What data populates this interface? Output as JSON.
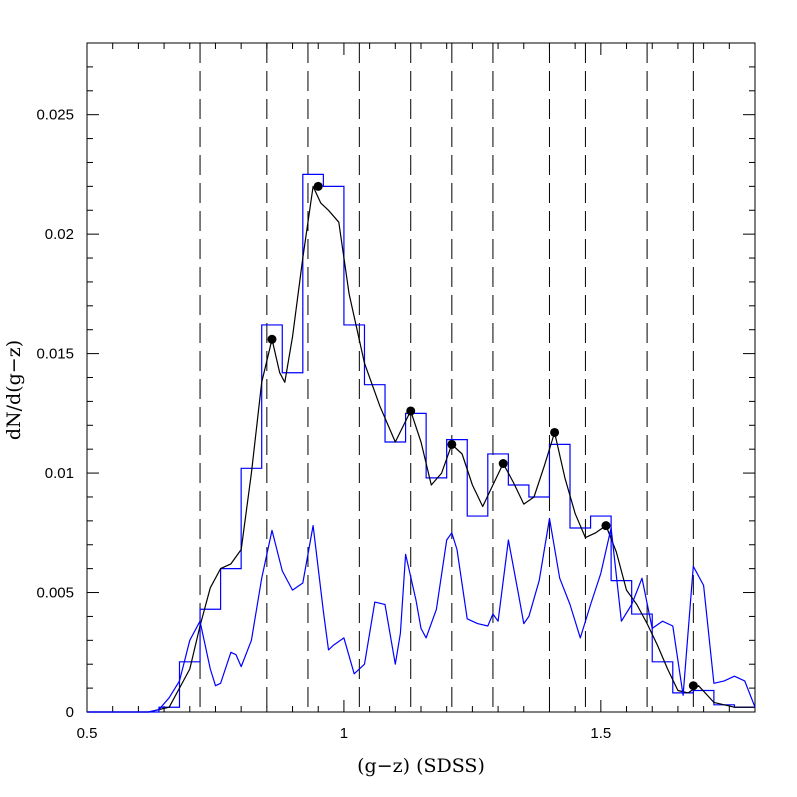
{
  "chart_data": {
    "type": "line",
    "title": "",
    "xlabel": "(g−z)  (SDSS)",
    "ylabel": "dN/d(g−z)",
    "xlim": [
      0.5,
      1.8
    ],
    "ylim": [
      0,
      0.028
    ],
    "xticks": [
      0.5,
      1,
      1.5
    ],
    "xtick_labels": [
      "0.5",
      "1",
      "1.5"
    ],
    "yticks": [
      0,
      0.005,
      0.01,
      0.015,
      0.02,
      0.025
    ],
    "ytick_labels": [
      "0",
      "0.005",
      "0.01",
      "0.015",
      "0.02",
      "0.025"
    ],
    "grid": false,
    "colors": {
      "histogram": "#0000ff",
      "residual": "#0000ff",
      "smooth": "#000000",
      "peaks": "#000000",
      "guides": "#000000"
    },
    "vertical_dashed_lines": [
      0.72,
      0.85,
      0.93,
      1.03,
      1.13,
      1.21,
      1.29,
      1.4,
      1.47,
      1.59,
      1.68
    ],
    "histogram": {
      "edges": [
        0.5,
        0.64,
        0.68,
        0.72,
        0.76,
        0.8,
        0.84,
        0.88,
        0.92,
        0.96,
        1.0,
        1.04,
        1.08,
        1.12,
        1.16,
        1.2,
        1.24,
        1.28,
        1.32,
        1.36,
        1.4,
        1.44,
        1.48,
        1.52,
        1.56,
        1.6,
        1.64,
        1.68,
        1.72,
        1.76,
        1.8
      ],
      "values": [
        0,
        0.0002,
        0.0021,
        0.0043,
        0.006,
        0.0102,
        0.0162,
        0.0142,
        0.0225,
        0.022,
        0.0162,
        0.0137,
        0.0113,
        0.0125,
        0.0098,
        0.0114,
        0.0082,
        0.0108,
        0.0095,
        0.009,
        0.0112,
        0.0077,
        0.0082,
        0.0055,
        0.0041,
        0.0021,
        0.0008,
        0.0009,
        0.0003,
        0.0002
      ]
    },
    "series": [
      {
        "style": "smooth-black",
        "x": [
          0.5,
          0.62,
          0.66,
          0.7,
          0.72,
          0.74,
          0.76,
          0.78,
          0.8,
          0.82,
          0.84,
          0.86,
          0.875,
          0.885,
          0.9,
          0.92,
          0.94,
          0.955,
          0.97,
          0.99,
          1.01,
          1.04,
          1.07,
          1.1,
          1.13,
          1.15,
          1.17,
          1.19,
          1.21,
          1.23,
          1.25,
          1.27,
          1.29,
          1.31,
          1.33,
          1.35,
          1.37,
          1.39,
          1.41,
          1.43,
          1.45,
          1.47,
          1.49,
          1.51,
          1.53,
          1.55,
          1.57,
          1.59,
          1.61,
          1.63,
          1.65,
          1.67,
          1.69,
          1.72,
          1.76,
          1.8
        ],
        "y": [
          0,
          0,
          0.0002,
          0.0018,
          0.0036,
          0.0052,
          0.006,
          0.0062,
          0.0068,
          0.01,
          0.0138,
          0.0156,
          0.0142,
          0.0138,
          0.0157,
          0.019,
          0.022,
          0.0213,
          0.021,
          0.0205,
          0.0175,
          0.0146,
          0.0128,
          0.0113,
          0.0126,
          0.0113,
          0.0095,
          0.01,
          0.0112,
          0.0108,
          0.0095,
          0.0086,
          0.0095,
          0.0104,
          0.0096,
          0.0087,
          0.009,
          0.0103,
          0.0117,
          0.0098,
          0.0083,
          0.0073,
          0.0075,
          0.0078,
          0.0067,
          0.0051,
          0.0045,
          0.0037,
          0.0028,
          0.0018,
          0.0009,
          0.0008,
          0.0011,
          0.0004,
          0.0002,
          0.0002
        ]
      },
      {
        "style": "noisy-blue",
        "x": [
          0.5,
          0.62,
          0.64,
          0.66,
          0.68,
          0.7,
          0.72,
          0.74,
          0.75,
          0.76,
          0.78,
          0.79,
          0.8,
          0.82,
          0.84,
          0.86,
          0.88,
          0.9,
          0.92,
          0.94,
          0.96,
          0.97,
          0.98,
          1.0,
          1.02,
          1.04,
          1.06,
          1.08,
          1.1,
          1.11,
          1.12,
          1.14,
          1.15,
          1.16,
          1.18,
          1.2,
          1.21,
          1.22,
          1.24,
          1.26,
          1.28,
          1.29,
          1.3,
          1.32,
          1.34,
          1.35,
          1.36,
          1.38,
          1.4,
          1.42,
          1.44,
          1.46,
          1.48,
          1.5,
          1.52,
          1.54,
          1.56,
          1.58,
          1.6,
          1.62,
          1.64,
          1.66,
          1.68,
          1.7,
          1.72,
          1.74,
          1.76,
          1.78,
          1.8
        ],
        "y": [
          0,
          0,
          0.0001,
          0.0006,
          0.0013,
          0.003,
          0.0038,
          0.0018,
          0.0011,
          0.0012,
          0.0025,
          0.0024,
          0.0019,
          0.003,
          0.0056,
          0.0076,
          0.0059,
          0.0051,
          0.0054,
          0.0078,
          0.0042,
          0.0026,
          0.0028,
          0.0031,
          0.0016,
          0.002,
          0.0046,
          0.0045,
          0.002,
          0.0033,
          0.0066,
          0.0047,
          0.0035,
          0.0031,
          0.0043,
          0.0072,
          0.0075,
          0.0068,
          0.0039,
          0.0037,
          0.0036,
          0.0041,
          0.0038,
          0.0072,
          0.0049,
          0.0037,
          0.004,
          0.0055,
          0.0081,
          0.0056,
          0.0045,
          0.0031,
          0.0045,
          0.0058,
          0.0077,
          0.0038,
          0.0045,
          0.0056,
          0.0035,
          0.0038,
          0.0036,
          0.0007,
          0.0061,
          0.0053,
          0.0012,
          0.0013,
          0.0015,
          0.0013,
          0.0002
        ]
      }
    ],
    "peaks": {
      "x": [
        0.86,
        0.95,
        1.13,
        1.21,
        1.31,
        1.41,
        1.51,
        1.68
      ],
      "y": [
        0.0156,
        0.022,
        0.0126,
        0.0112,
        0.0104,
        0.0117,
        0.0078,
        0.0011
      ]
    }
  }
}
